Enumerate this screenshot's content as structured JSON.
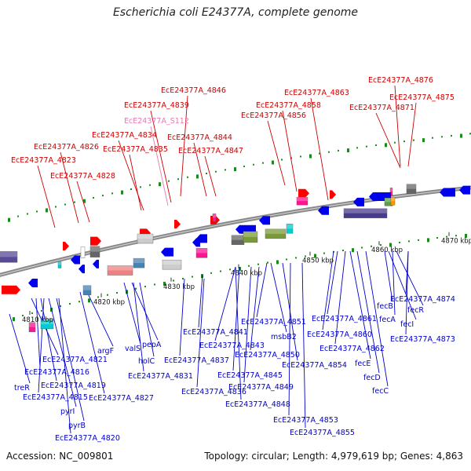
{
  "title": "Escherichia coli E24377A, complete genome",
  "footer": {
    "accession": "Accession: NC_009801",
    "stats": "Topology: circular; Length: 4,979,619 bp; Genes: 4,863"
  },
  "colors": {
    "top_label": "#cc0000",
    "top_label_pink": "#e879b4",
    "bottom_label": "#0000cc",
    "backbone": "#888888",
    "gene_red": "#ff0000",
    "gene_blue": "#0000ee",
    "trna_pink": "#ff1493",
    "rrna_cyan": "#00ced1",
    "dot_green": "#1a8a1a"
  },
  "scale_ticks": [
    "4810 kbp",
    "4820 kbp",
    "4830 kbp",
    "4840 kbp",
    "4850 kbp",
    "4860 kbp",
    "4870 kbp"
  ],
  "top_labels": [
    "EcE24377A_4846",
    "EcE24377A_4863",
    "EcE24377A_4876",
    "EcE24377A_4839",
    "EcE24377A_4858",
    "EcE24377A_4875",
    "EcE24377A_S112",
    "EcE24377A_4856",
    "EcE24377A_4871",
    "EcE24377A_4834",
    "EcE24377A_4844",
    "EcE24377A_4826",
    "EcE24377A_4835",
    "EcE24377A_4847",
    "EcE24377A_4823",
    "EcE24377A_4828"
  ],
  "bottom_labels": [
    "EcE24377A_4874",
    "fecR",
    "fecA",
    "fecB",
    "EcE24377A_4861",
    "fecI",
    "EcE24377A_4873",
    "EcE24377A_4851",
    "EcE24377A_4860",
    "msbB2",
    "EcE24377A_4841",
    "EcE24377A_4862",
    "pepA",
    "valS",
    "EcE24377A_4843",
    "EcE24377A_4850",
    "fecE",
    "EcE24377A_4854",
    "EcE24377A_4821",
    "argF",
    "holC",
    "EcE24377A_4837",
    "EcE24377A_4816",
    "EcE24377A_4831",
    "EcE24377A_4845",
    "fecD",
    "EcE24377A_4819",
    "treR",
    "EcE24377A_4849",
    "fecC",
    "EcE24377A_4836",
    "EcE24377A_4815",
    "EcE24377A_4827",
    "EcE24377A_4848",
    "pyrI",
    "EcE24377A_4853",
    "pyrB",
    "EcE24377A_4855",
    "EcE24377A_4820"
  ]
}
